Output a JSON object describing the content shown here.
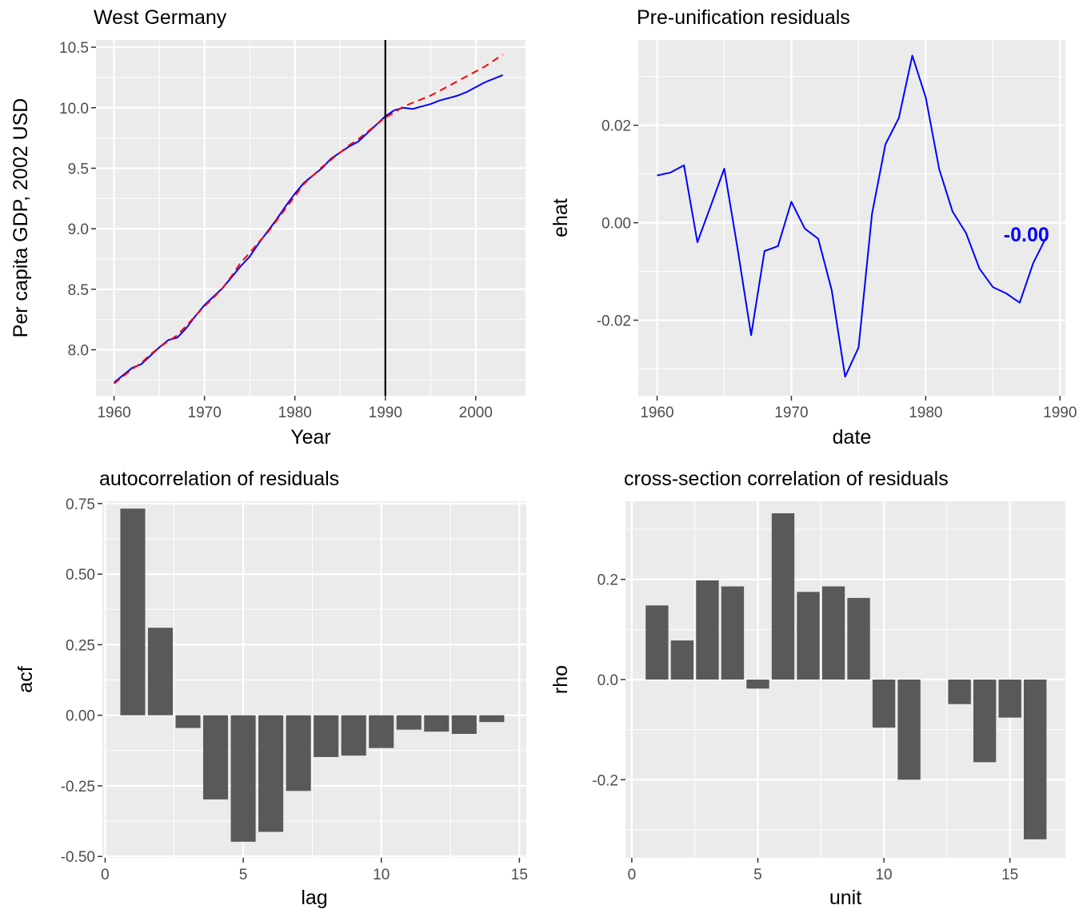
{
  "colors": {
    "panel_bg": "#ebebeb",
    "grid": "#ffffff",
    "bar": "#595959",
    "actual_line": "#0000ff",
    "synthetic_line": "#ff0000",
    "vline": "#000000",
    "residual_line": "#0000ff",
    "annotation": "#0000ff"
  },
  "chart_data": [
    {
      "id": "west-germany",
      "type": "line",
      "title": "West Germany",
      "xlabel": "Year",
      "ylabel": "Per capita GDP, 2002 USD",
      "xlim": [
        1958,
        2005.5
      ],
      "ylim": [
        7.62,
        10.56
      ],
      "xticks": [
        1960,
        1970,
        1980,
        1990,
        2000
      ],
      "xtick_labels": [
        "1960",
        "1970",
        "1980",
        "1990",
        "2000"
      ],
      "yticks": [
        8.0,
        8.5,
        9.0,
        9.5,
        10.0,
        10.5
      ],
      "ytick_labels": [
        "8.0",
        "8.5",
        "9.0",
        "9.5",
        "10.0",
        "10.5"
      ],
      "vline": 1990,
      "grid": true,
      "series": [
        {
          "role": "actual",
          "style": "solid",
          "color": "#0000ff",
          "x": [
            1960,
            1961,
            1962,
            1963,
            1964,
            1965,
            1966,
            1967,
            1968,
            1969,
            1970,
            1971,
            1972,
            1973,
            1974,
            1975,
            1976,
            1977,
            1978,
            1979,
            1980,
            1981,
            1982,
            1983,
            1984,
            1985,
            1986,
            1987,
            1988,
            1989,
            1990,
            1991,
            1992,
            1993,
            1994,
            1995,
            1996,
            1997,
            1998,
            1999,
            2000,
            2001,
            2002,
            2003
          ],
          "y": [
            7.73,
            7.79,
            7.85,
            7.88,
            7.95,
            8.02,
            8.08,
            8.1,
            8.18,
            8.28,
            8.37,
            8.44,
            8.51,
            8.6,
            8.69,
            8.77,
            8.88,
            8.98,
            9.08,
            9.19,
            9.29,
            9.38,
            9.44,
            9.5,
            9.58,
            9.63,
            9.68,
            9.72,
            9.79,
            9.86,
            9.93,
            9.98,
            10.0,
            9.99,
            10.01,
            10.03,
            10.06,
            10.08,
            10.1,
            10.13,
            10.17,
            10.21,
            10.24,
            10.27
          ]
        },
        {
          "role": "synthetic",
          "style": "dashed",
          "color": "#ff0000",
          "x": [
            1960,
            1961,
            1962,
            1963,
            1964,
            1965,
            1966,
            1967,
            1968,
            1969,
            1970,
            1971,
            1972,
            1973,
            1974,
            1975,
            1976,
            1977,
            1978,
            1979,
            1980,
            1981,
            1982,
            1983,
            1984,
            1985,
            1986,
            1987,
            1988,
            1989,
            1990,
            1991,
            1992,
            1993,
            1994,
            1995,
            1996,
            1997,
            1998,
            1999,
            2000,
            2001,
            2002,
            2003
          ],
          "y": [
            7.72,
            7.78,
            7.84,
            7.89,
            7.96,
            8.02,
            8.07,
            8.12,
            8.2,
            8.28,
            8.36,
            8.43,
            8.51,
            8.61,
            8.72,
            8.8,
            8.89,
            8.97,
            9.07,
            9.17,
            9.27,
            9.37,
            9.44,
            9.51,
            9.57,
            9.63,
            9.69,
            9.74,
            9.8,
            9.86,
            9.92,
            9.96,
            10.01,
            10.04,
            10.07,
            10.1,
            10.14,
            10.18,
            10.22,
            10.26,
            10.3,
            10.34,
            10.39,
            10.44
          ]
        }
      ]
    },
    {
      "id": "pre-unification-residuals",
      "type": "line",
      "title": "Pre-unification residuals",
      "xlabel": "date",
      "ylabel": "ehat",
      "xlim": [
        1958.6,
        1990.4
      ],
      "ylim": [
        -0.0355,
        0.0375
      ],
      "xticks": [
        1960,
        1970,
        1980,
        1990
      ],
      "xtick_labels": [
        "1960",
        "1970",
        "1980",
        "1990"
      ],
      "yticks": [
        -0.02,
        0.0,
        0.02
      ],
      "ytick_labels": [
        "-0.02",
        "0.00",
        "0.02"
      ],
      "grid": true,
      "series": [
        {
          "color": "#0000ff",
          "x": [
            1960,
            1961,
            1962,
            1963,
            1964,
            1965,
            1966,
            1967,
            1968,
            1969,
            1970,
            1971,
            1972,
            1973,
            1974,
            1975,
            1976,
            1977,
            1978,
            1979,
            1980,
            1981,
            1982,
            1983,
            1984,
            1985,
            1986,
            1987,
            1988,
            1989
          ],
          "y": [
            0.0097,
            0.0103,
            0.0118,
            -0.004,
            0.0035,
            0.0111,
            -0.0055,
            -0.0231,
            -0.0058,
            -0.0048,
            0.0043,
            -0.0012,
            -0.0033,
            -0.0138,
            -0.0316,
            -0.0256,
            0.0018,
            0.0161,
            0.0215,
            0.0343,
            0.0257,
            0.011,
            0.0023,
            -0.0021,
            -0.0094,
            -0.0132,
            -0.0145,
            -0.0164,
            -0.0083,
            -0.0028
          ]
        }
      ],
      "annotation": {
        "text": "-0.00",
        "x": 1987.5,
        "y": -0.0024
      }
    },
    {
      "id": "autocorrelation",
      "type": "bar",
      "title": "autocorrelation of residuals",
      "xlabel": "lag",
      "ylabel": "acf",
      "xlim": [
        -0.1,
        15.25
      ],
      "ylim": [
        -0.505,
        0.758
      ],
      "xticks": [
        0,
        5,
        10,
        15
      ],
      "xtick_labels": [
        "0",
        "5",
        "10",
        "15"
      ],
      "yticks": [
        -0.5,
        -0.25,
        0.0,
        0.25,
        0.5,
        0.75
      ],
      "ytick_labels": [
        "-0.50",
        "-0.25",
        "0.00",
        "0.25",
        "0.50",
        "0.75"
      ],
      "grid": true,
      "categories": [
        1,
        2,
        3,
        4,
        5,
        6,
        7,
        8,
        9,
        10,
        11,
        12,
        13,
        14
      ],
      "values": [
        0.732,
        0.31,
        -0.045,
        -0.298,
        -0.448,
        -0.413,
        -0.268,
        -0.148,
        -0.143,
        -0.116,
        -0.051,
        -0.058,
        -0.066,
        -0.024
      ]
    },
    {
      "id": "cross-section-correlation",
      "type": "bar",
      "title": "cross-section correlation of residuals",
      "xlabel": "unit",
      "ylabel": "rho",
      "xlim": [
        -0.25,
        17.2
      ],
      "ylim": [
        -0.356,
        0.356
      ],
      "xticks": [
        0,
        5,
        10,
        15
      ],
      "xtick_labels": [
        "0",
        "5",
        "10",
        "15"
      ],
      "yticks": [
        -0.2,
        0.0,
        0.2
      ],
      "ytick_labels": [
        "-0.2",
        "0.0",
        "0.2"
      ],
      "grid": true,
      "categories": [
        1,
        2,
        3,
        4,
        5,
        6,
        7,
        8,
        9,
        10,
        11,
        12,
        13,
        14,
        15,
        16
      ],
      "values": [
        0.148,
        0.078,
        0.198,
        0.186,
        -0.018,
        0.332,
        0.175,
        0.186,
        0.163,
        -0.096,
        -0.2,
        0.0,
        -0.049,
        -0.165,
        -0.076,
        -0.319
      ]
    }
  ]
}
